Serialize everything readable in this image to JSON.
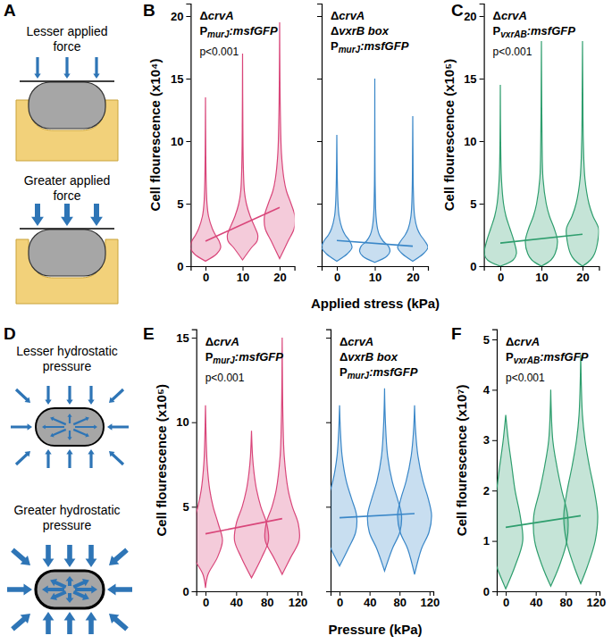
{
  "panel_labels": [
    "A",
    "B",
    "C",
    "D",
    "E",
    "F"
  ],
  "diagrams": [
    {
      "labels": [
        [
          "Lesser applied",
          "force"
        ],
        [
          "Greater applied",
          "force"
        ]
      ]
    },
    {
      "labels": [
        [
          "Lesser hydrostatic",
          "pressure"
        ],
        [
          "Greater hydrostatic",
          "pressure"
        ]
      ]
    }
  ],
  "chart_data": [
    {
      "type": "violin",
      "title": [
        "ΔcrvA",
        "PmurJ:msfGFP"
      ],
      "annotation": "p<0.001",
      "y_label": "Cell flourescence (x10⁴)",
      "xlim": [
        -4,
        24
      ],
      "xticks": [
        0,
        10,
        20
      ],
      "ylim": [
        0,
        21
      ],
      "yticks": [
        0,
        5,
        10,
        15,
        20
      ],
      "color": "#d9467a",
      "violins": [
        {
          "x": 0,
          "values": [
            0.4,
            1,
            1.5,
            2,
            2.5,
            3,
            4,
            5,
            6.5,
            9,
            13.5
          ],
          "density": [
            0,
            0.75,
            1,
            0.9,
            0.65,
            0.45,
            0.2,
            0.1,
            0.05,
            0.02,
            0
          ]
        },
        {
          "x": 10,
          "values": [
            0.5,
            1.5,
            2,
            2.5,
            3,
            4,
            5,
            6,
            8,
            11,
            17
          ],
          "density": [
            0,
            0.6,
            0.95,
            1,
            0.85,
            0.5,
            0.25,
            0.12,
            0.05,
            0.02,
            0
          ]
        },
        {
          "x": 20,
          "values": [
            0.6,
            2,
            3,
            4,
            5,
            6,
            7,
            9,
            12,
            15,
            19.5
          ],
          "density": [
            0,
            0.55,
            0.95,
            1,
            0.75,
            0.45,
            0.28,
            0.12,
            0.05,
            0.02,
            0
          ]
        }
      ],
      "fit": {
        "x": [
          0,
          20
        ],
        "y": [
          2.0,
          4.7
        ]
      }
    },
    {
      "type": "violin",
      "title": [
        "ΔcrvA",
        "ΔvxrB box",
        "PmurJ:msfGFP"
      ],
      "x_label": "Applied stress (kPa)",
      "tick_labels": "x",
      "xlim": [
        -4,
        24
      ],
      "xticks": [
        0,
        10,
        20
      ],
      "ylim": [
        0,
        21
      ],
      "yticks": [
        0,
        5,
        10,
        15,
        20
      ],
      "color": "#3a87c8",
      "violins": [
        {
          "x": 0,
          "values": [
            0.4,
            1,
            1.5,
            2,
            2.5,
            3,
            4,
            5,
            7,
            10.5
          ],
          "density": [
            0,
            0.7,
            1,
            0.85,
            0.55,
            0.35,
            0.15,
            0.08,
            0.03,
            0
          ]
        },
        {
          "x": 10,
          "values": [
            0.3,
            0.8,
            1.2,
            1.6,
            2,
            2.5,
            3,
            4,
            6,
            9,
            15
          ],
          "density": [
            0,
            0.8,
            1,
            0.9,
            0.55,
            0.3,
            0.18,
            0.08,
            0.03,
            0.01,
            0
          ]
        },
        {
          "x": 20,
          "values": [
            0.4,
            1,
            1.5,
            2,
            2.5,
            3,
            4,
            6,
            9,
            12
          ],
          "density": [
            0,
            0.7,
            1,
            0.8,
            0.5,
            0.3,
            0.12,
            0.04,
            0.015,
            0
          ]
        }
      ],
      "fit": {
        "x": [
          0,
          20
        ],
        "y": [
          2.05,
          1.6
        ]
      }
    },
    {
      "type": "violin",
      "title": [
        "ΔcrvA",
        "PvxrAB:msfGFP"
      ],
      "annotation": "p<0.001",
      "y_label": "Cell flourescence (x10⁵)",
      "xlim": [
        -4,
        24
      ],
      "xticks": [
        0,
        10,
        20
      ],
      "ylim": [
        0,
        21
      ],
      "yticks": [
        0,
        5,
        10,
        15,
        20
      ],
      "color": "#2f9e6e",
      "violins": [
        {
          "x": 0,
          "values": [
            0,
            0.5,
            1,
            2,
            3,
            4,
            5,
            7,
            10,
            14.5
          ],
          "density": [
            0,
            0.8,
            1,
            0.85,
            0.6,
            0.35,
            0.2,
            0.07,
            0.02,
            0
          ]
        },
        {
          "x": 10,
          "values": [
            0,
            0.5,
            1,
            2,
            3,
            4,
            5,
            7,
            10,
            14,
            18
          ],
          "density": [
            0,
            0.6,
            0.85,
            1,
            0.8,
            0.5,
            0.3,
            0.1,
            0.04,
            0.015,
            0
          ]
        },
        {
          "x": 20,
          "values": [
            0,
            0.5,
            1,
            2,
            3,
            4,
            5,
            7,
            10,
            14,
            18
          ],
          "density": [
            0,
            0.5,
            0.75,
            0.95,
            1,
            0.65,
            0.4,
            0.15,
            0.05,
            0.02,
            0
          ]
        }
      ],
      "fit": {
        "x": [
          0,
          20
        ],
        "y": [
          1.85,
          2.55
        ]
      }
    },
    {
      "type": "violin",
      "title": [
        "ΔcrvA",
        "PmurJ:msfGFP"
      ],
      "annotation": "p<0.001",
      "y_label": "Cell flourescence (x10⁵)",
      "xlim": [
        -12,
        125
      ],
      "xticks": [
        0,
        40,
        80,
        120
      ],
      "ylim": [
        0,
        15.5
      ],
      "yticks": [
        0,
        5,
        10,
        15
      ],
      "color": "#d9467a",
      "violins": [
        {
          "x": 0,
          "values": [
            0.2,
            1,
            2,
            3,
            4,
            5,
            6,
            7.5,
            9,
            11
          ],
          "density": [
            0,
            0.15,
            0.7,
            1,
            0.75,
            0.45,
            0.25,
            0.1,
            0.04,
            0
          ]
        },
        {
          "x": 60,
          "values": [
            0.8,
            2,
            3,
            4,
            5,
            6,
            7,
            8,
            9.5
          ],
          "density": [
            0,
            0.6,
            1,
            0.9,
            0.55,
            0.3,
            0.15,
            0.06,
            0
          ]
        },
        {
          "x": 100,
          "values": [
            1,
            2,
            3,
            4,
            5,
            6,
            8,
            10,
            12,
            15
          ],
          "density": [
            0,
            0.5,
            1,
            0.95,
            0.6,
            0.35,
            0.12,
            0.05,
            0.02,
            0
          ]
        }
      ],
      "fit": {
        "x": [
          0,
          100
        ],
        "y": [
          3.4,
          4.3
        ]
      }
    },
    {
      "type": "violin",
      "title": [
        "ΔcrvA",
        "ΔvxrB box",
        "PmurJ:msfGFP"
      ],
      "x_label": "Pressure (kPa)",
      "tick_labels": "x",
      "xlim": [
        -12,
        125
      ],
      "xticks": [
        0,
        40,
        80,
        120
      ],
      "ylim": [
        0,
        15.5
      ],
      "yticks": [
        0,
        5,
        10,
        15
      ],
      "color": "#3a87c8",
      "violins": [
        {
          "x": 0,
          "values": [
            1.5,
            2.5,
            3.5,
            4.5,
            5.5,
            6.5,
            8,
            9.5,
            11
          ],
          "density": [
            0,
            0.5,
            0.95,
            1,
            0.7,
            0.4,
            0.15,
            0.05,
            0
          ]
        },
        {
          "x": 60,
          "values": [
            1.2,
            2.5,
            3.5,
            4.5,
            5.5,
            6.5,
            8,
            10,
            12
          ],
          "density": [
            0,
            0.45,
            0.9,
            1,
            0.75,
            0.45,
            0.18,
            0.05,
            0
          ]
        },
        {
          "x": 100,
          "values": [
            1,
            2.5,
            3.5,
            4.5,
            5.5,
            6.5,
            8,
            9.5,
            11
          ],
          "density": [
            0,
            0.4,
            0.85,
            1,
            0.8,
            0.5,
            0.2,
            0.06,
            0
          ]
        }
      ],
      "fit": {
        "x": [
          0,
          100
        ],
        "y": [
          4.35,
          4.6
        ]
      }
    },
    {
      "type": "violin",
      "title": [
        "ΔcrvA",
        "PvxrAB:msfGFP"
      ],
      "annotation": "p<0.001",
      "y_label": "Cell flourescence (x10⁷)",
      "xlim": [
        -12,
        125
      ],
      "xticks": [
        0,
        40,
        80,
        120
      ],
      "ylim": [
        0,
        5.2
      ],
      "yticks": [
        0,
        1,
        2,
        3,
        4,
        5
      ],
      "color": "#2f9e6e",
      "violins": [
        {
          "x": 0,
          "values": [
            0.05,
            0.5,
            1,
            1.5,
            2,
            2.5,
            3,
            3.5
          ],
          "density": [
            0,
            0.55,
            1,
            0.85,
            0.55,
            0.35,
            0.15,
            0
          ]
        },
        {
          "x": 60,
          "values": [
            0.1,
            0.5,
            1,
            1.5,
            2,
            2.5,
            3,
            4
          ],
          "density": [
            0,
            0.5,
            0.95,
            1,
            0.65,
            0.35,
            0.12,
            0
          ]
        },
        {
          "x": 100,
          "values": [
            0.15,
            0.5,
            1,
            1.5,
            2,
            2.5,
            3,
            3.5,
            4.7
          ],
          "density": [
            0,
            0.4,
            0.85,
            1,
            0.8,
            0.5,
            0.25,
            0.1,
            0
          ]
        }
      ],
      "fit": {
        "x": [
          0,
          100
        ],
        "y": [
          1.27,
          1.5
        ]
      }
    }
  ]
}
